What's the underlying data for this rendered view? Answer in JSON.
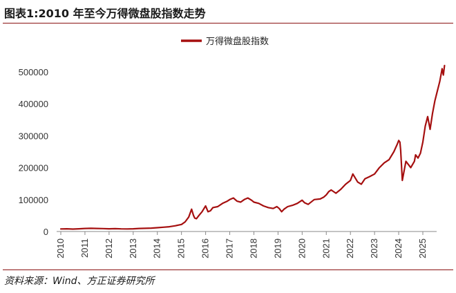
{
  "header": {
    "title": "图表1:2010 年至今万得微盘股指数走势"
  },
  "footer": {
    "source": "资料来源：Wind、方正证券研究所"
  },
  "colors": {
    "series": "#a50f0f",
    "rule": "#8a1010",
    "axis": "#888888"
  },
  "chart_data": {
    "type": "line",
    "title": "",
    "xlabel": "",
    "ylabel": "",
    "legend": {
      "placement": "top-center"
    },
    "grid": false,
    "xlim": [
      2010,
      2025.9
    ],
    "ylim": [
      0,
      500000
    ],
    "x_ticks": [
      "2010",
      "2011",
      "2012",
      "2013",
      "2014",
      "2015",
      "2016",
      "2017",
      "2018",
      "2019",
      "2020",
      "2021",
      "2022",
      "2023",
      "2024",
      "2025"
    ],
    "y_ticks": [
      "0",
      "100000",
      "200000",
      "300000",
      "400000",
      "500000"
    ],
    "series": [
      {
        "name": "万得微盘股指数",
        "x": [
          2010.0,
          2010.25,
          2010.5,
          2010.75,
          2011.0,
          2011.25,
          2011.5,
          2011.75,
          2012.0,
          2012.25,
          2012.5,
          2012.75,
          2013.0,
          2013.25,
          2013.5,
          2013.75,
          2014.0,
          2014.25,
          2014.5,
          2014.75,
          2015.0,
          2015.15,
          2015.3,
          2015.42,
          2015.5,
          2015.55,
          2015.62,
          2015.72,
          2015.85,
          2016.0,
          2016.1,
          2016.2,
          2016.3,
          2016.5,
          2016.7,
          2016.9,
          2017.0,
          2017.15,
          2017.3,
          2017.45,
          2017.6,
          2017.75,
          2017.9,
          2018.0,
          2018.2,
          2018.4,
          2018.6,
          2018.8,
          2018.95,
          2019.05,
          2019.15,
          2019.25,
          2019.4,
          2019.6,
          2019.8,
          2020.0,
          2020.1,
          2020.25,
          2020.5,
          2020.75,
          2020.9,
          2021.0,
          2021.1,
          2021.2,
          2021.4,
          2021.6,
          2021.8,
          2022.0,
          2022.1,
          2022.3,
          2022.45,
          2022.6,
          2022.8,
          2023.0,
          2023.2,
          2023.4,
          2023.6,
          2023.8,
          2023.95,
          2024.0,
          2024.05,
          2024.08,
          2024.15,
          2024.3,
          2024.5,
          2024.65,
          2024.7,
          2024.8,
          2024.9,
          2025.0,
          2025.1,
          2025.2,
          2025.3,
          2025.4,
          2025.5,
          2025.6,
          2025.7,
          2025.8,
          2025.85,
          2025.9
        ],
        "values": [
          8000,
          8500,
          7500,
          8500,
          9500,
          10000,
          9500,
          9000,
          8500,
          8800,
          8200,
          8000,
          8500,
          9500,
          10000,
          10500,
          12000,
          13500,
          15000,
          18000,
          22000,
          30000,
          45000,
          70000,
          50000,
          42000,
          40000,
          50000,
          62000,
          80000,
          62000,
          65000,
          75000,
          78000,
          88000,
          95000,
          100000,
          105000,
          95000,
          92000,
          100000,
          105000,
          98000,
          92000,
          88000,
          80000,
          75000,
          72000,
          78000,
          72000,
          62000,
          70000,
          78000,
          82000,
          88000,
          98000,
          90000,
          85000,
          100000,
          102000,
          108000,
          115000,
          125000,
          130000,
          120000,
          132000,
          148000,
          160000,
          180000,
          155000,
          148000,
          165000,
          172000,
          180000,
          200000,
          215000,
          225000,
          250000,
          275000,
          285000,
          280000,
          255000,
          160000,
          220000,
          200000,
          220000,
          240000,
          230000,
          245000,
          280000,
          330000,
          360000,
          320000,
          370000,
          410000,
          440000,
          470000,
          510000,
          490000,
          520000
        ]
      }
    ]
  }
}
